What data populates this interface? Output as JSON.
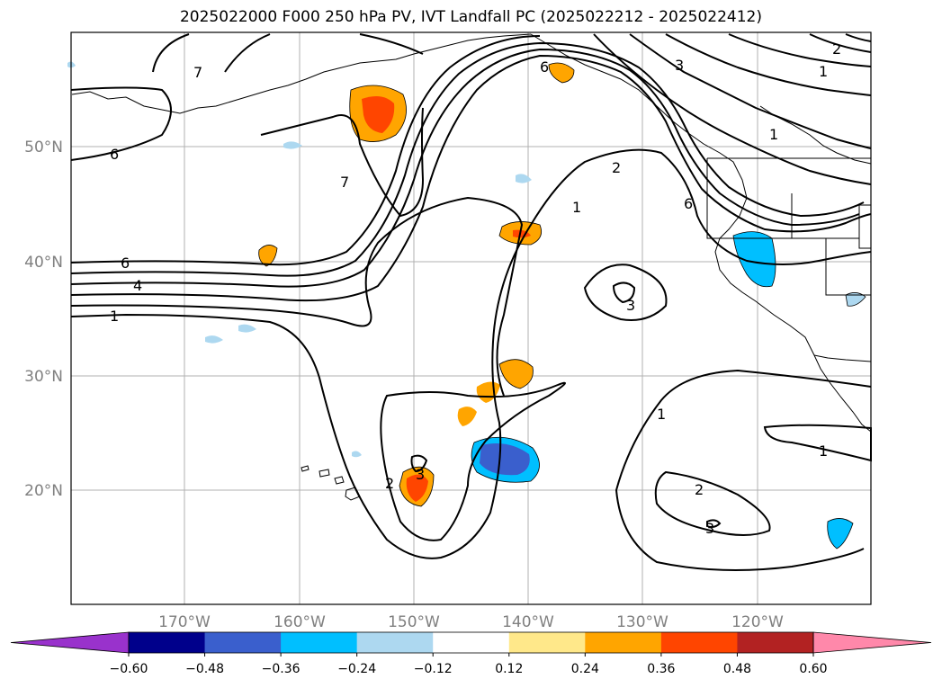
{
  "title": "2025022000 F000 250 hPa PV, IVT Landfall PC (2025022212 - 2025022412)",
  "lat_labels": [
    "50°N",
    "40°N",
    "30°N",
    "20°N"
  ],
  "lon_labels": [
    "170°W",
    "160°W",
    "150°W",
    "140°W",
    "130°W",
    "120°W"
  ],
  "contour_labels": [
    "1",
    "2",
    "3",
    "4",
    "6",
    "7"
  ],
  "colorbar": {
    "ticks": [
      "−0.60",
      "−0.48",
      "−0.36",
      "−0.24",
      "−0.12",
      "0.12",
      "0.24",
      "0.36",
      "0.48",
      "0.60"
    ],
    "colors": [
      "#9932cc",
      "#00008b",
      "#3a5fcd",
      "#00bfff",
      "#add8f0",
      "#ffffff",
      "#ffe88a",
      "#ffa500",
      "#ff4500",
      "#b22222",
      "#ff88aa"
    ]
  }
}
